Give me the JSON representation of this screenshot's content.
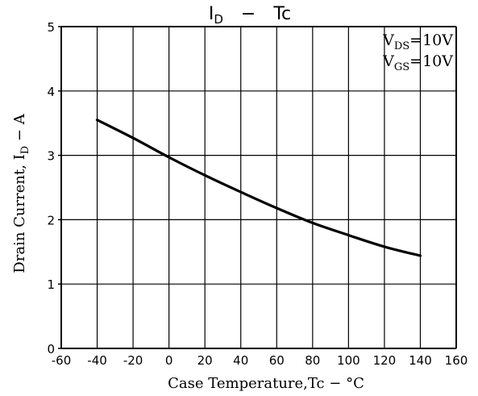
{
  "chart_data": {
    "type": "line",
    "title": {
      "main": "I",
      "sub": "D",
      "dash": "−",
      "rest": "Tc"
    },
    "xlabel": "Case Temperature,Tc − °C",
    "ylabel": {
      "pre": "Drain Current, I",
      "sub": "D",
      "post": " − A"
    },
    "xlim": [
      -60,
      160
    ],
    "ylim": [
      0,
      5
    ],
    "xticks": [
      -60,
      -40,
      -20,
      0,
      20,
      40,
      60,
      80,
      100,
      120,
      140,
      160
    ],
    "yticks": [
      0,
      1,
      2,
      3,
      4,
      5
    ],
    "grid": true,
    "annotations": [
      {
        "pre": "V",
        "sub": "DS",
        "post": "=10V"
      },
      {
        "pre": "V",
        "sub": "GS",
        "post": "=10V"
      }
    ],
    "series": [
      {
        "x": [
          -40,
          -20,
          0,
          20,
          40,
          60,
          80,
          100,
          120,
          140
        ],
        "y": [
          3.55,
          3.27,
          2.97,
          2.69,
          2.43,
          2.18,
          1.95,
          1.76,
          1.58,
          1.44
        ]
      }
    ],
    "colors": {
      "line": "#000000",
      "grid": "#000000"
    }
  }
}
